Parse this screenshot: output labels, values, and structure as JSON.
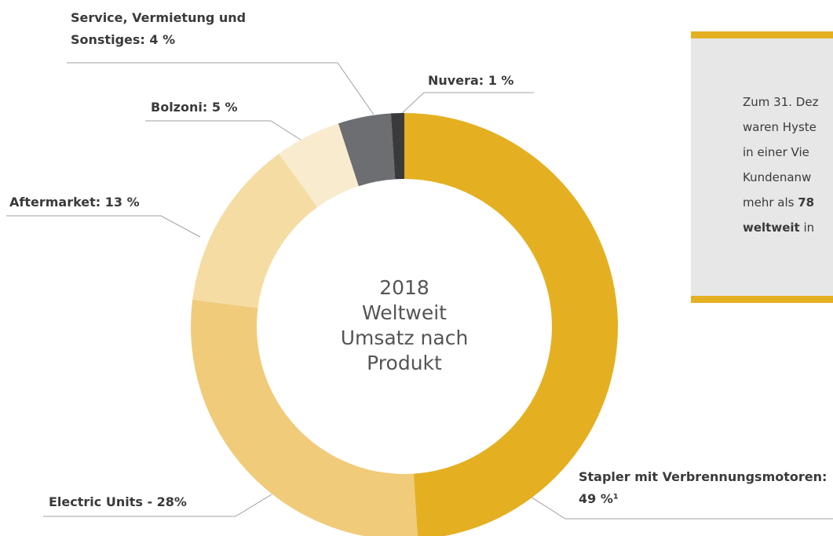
{
  "chart_data": {
    "type": "donut",
    "categories": [
      "Stapler mit Verbrennungsmotoren: 49 %¹",
      "Electric Units - 28%",
      "Aftermarket: 13 %",
      "Bolzoni: 5 %",
      "Service, Vermietung und Sonstiges: 4 %",
      "Nuvera: 1 %"
    ],
    "values": [
      49,
      28,
      13,
      5,
      4,
      1
    ],
    "colors": [
      "#e4b022",
      "#f0cb7a",
      "#f5dca3",
      "#f9ebcd",
      "#6d6e71",
      "#3a3a3c"
    ],
    "center_text": [
      "2018",
      "Weltweit",
      "Umsatz nach",
      "Produkt"
    ]
  },
  "info_box": {
    "lines": [
      [
        {
          "text": "Zum 31. Dez"
        }
      ],
      [
        {
          "text": "waren Hyste"
        }
      ],
      [
        {
          "text": "in einer Vie"
        }
      ],
      [
        {
          "text": "Kundenanw"
        }
      ],
      [
        {
          "text": "mehr als "
        },
        {
          "text": "78",
          "bold": true
        }
      ],
      [
        {
          "text": "weltweit",
          "bold": true
        },
        {
          "text": " in"
        }
      ]
    ]
  }
}
